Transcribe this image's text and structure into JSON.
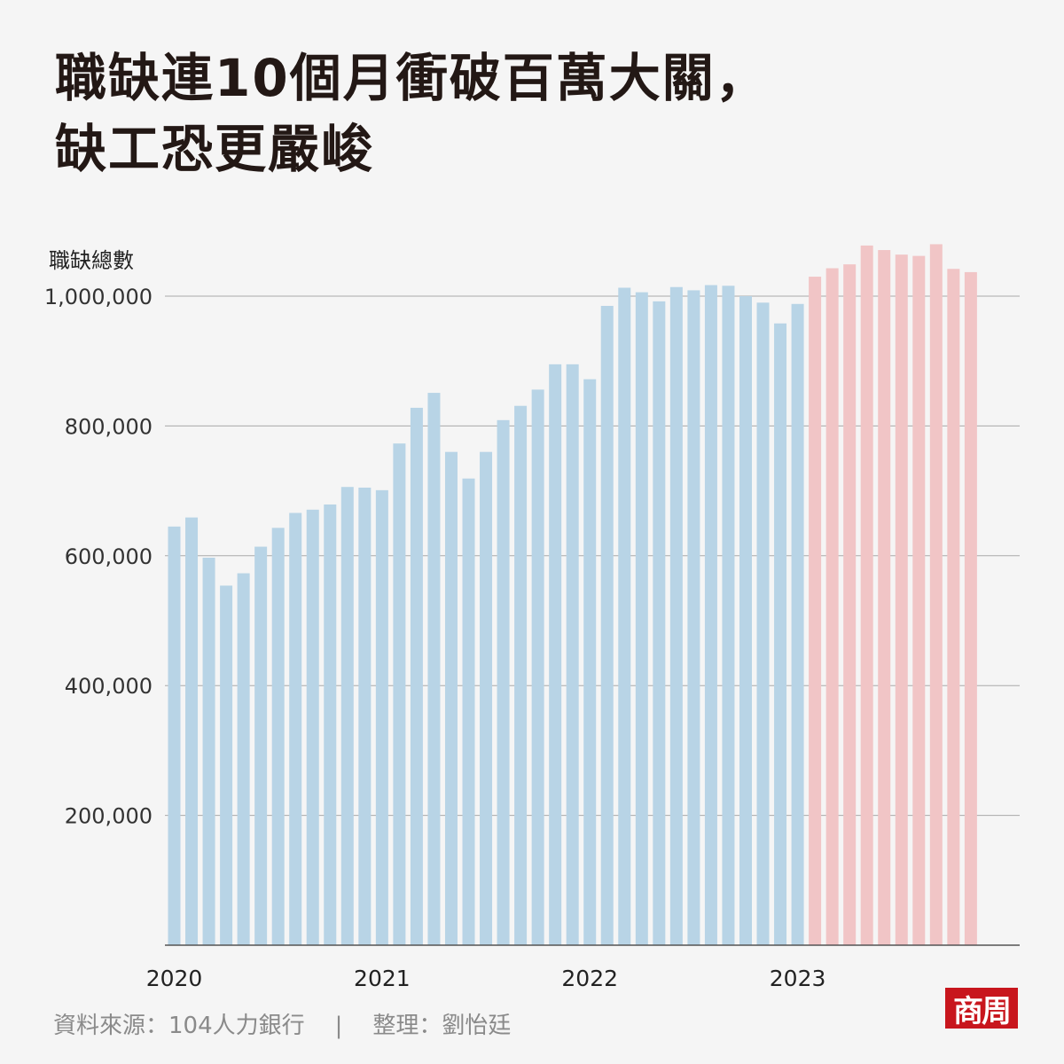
{
  "title": {
    "line1": "職缺連10個月衝破百萬大關，",
    "line2": "缺工恐更嚴峻"
  },
  "footer": {
    "source": "資料來源：104人力銀行",
    "separator": "|",
    "editor": "整理：劉怡廷"
  },
  "logo": {
    "text": "商周"
  },
  "colors": {
    "past": "#b8d4e6",
    "recent": "#f1c5c6",
    "grid": "#a9a9a9",
    "axis": "#555555"
  },
  "chart_data": {
    "type": "bar",
    "ylabel": "職缺總數",
    "ylim": [
      0,
      1000000
    ],
    "yticks": [
      200000,
      400000,
      600000,
      800000,
      1000000
    ],
    "ytick_labels": [
      "200,000",
      "400,000",
      "600,000",
      "800,000",
      "1,000,000"
    ],
    "x_labels": [
      {
        "label": "2020",
        "index": 0
      },
      {
        "label": "2021",
        "index": 12
      },
      {
        "label": "2022",
        "index": 24
      },
      {
        "label": "2023",
        "index": 36
      }
    ],
    "grid": true,
    "highlight_from_index": 37,
    "values": [
      645000,
      659000,
      597000,
      554000,
      573000,
      614000,
      643000,
      666000,
      671000,
      679000,
      706000,
      705000,
      701000,
      773000,
      828000,
      851000,
      760000,
      719000,
      760000,
      809000,
      831000,
      856000,
      895000,
      895000,
      872000,
      985000,
      1013000,
      1006000,
      992000,
      1014000,
      1009000,
      1017000,
      1016000,
      1000000,
      990000,
      958000,
      988000,
      1030000,
      1043000,
      1049000,
      1078000,
      1071000,
      1064000,
      1062000,
      1080000,
      1042000,
      1037000
    ]
  }
}
